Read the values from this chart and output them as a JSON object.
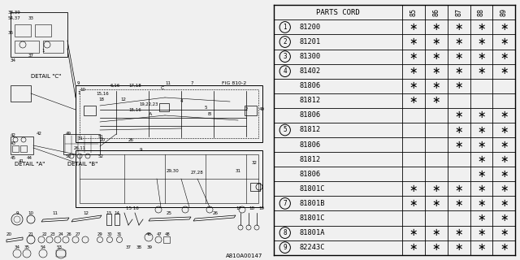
{
  "catalog_num": "A810A00147",
  "fig_ref": "FIG 810-2",
  "bg_color": "#f0f0f0",
  "table": {
    "rows": [
      {
        "num": "1",
        "part": "81200",
        "cols": [
          true,
          true,
          true,
          true,
          true
        ]
      },
      {
        "num": "2",
        "part": "81201",
        "cols": [
          true,
          true,
          true,
          true,
          true
        ]
      },
      {
        "num": "3",
        "part": "81300",
        "cols": [
          true,
          true,
          true,
          true,
          true
        ]
      },
      {
        "num": "4",
        "part": "81402",
        "cols": [
          true,
          true,
          true,
          true,
          true
        ]
      },
      {
        "num": "",
        "part": "81806",
        "cols": [
          true,
          true,
          true,
          false,
          false
        ]
      },
      {
        "num": "",
        "part": "81812",
        "cols": [
          true,
          true,
          false,
          false,
          false
        ]
      },
      {
        "num": "",
        "part": "81806",
        "cols": [
          false,
          false,
          true,
          true,
          true
        ]
      },
      {
        "num": "5",
        "part": "81812",
        "cols": [
          false,
          false,
          true,
          true,
          true
        ]
      },
      {
        "num": "",
        "part": "81806",
        "cols": [
          false,
          false,
          true,
          true,
          true
        ]
      },
      {
        "num": "",
        "part": "81812",
        "cols": [
          false,
          false,
          false,
          true,
          true
        ]
      },
      {
        "num": "",
        "part": "81806",
        "cols": [
          false,
          false,
          false,
          true,
          true
        ]
      },
      {
        "num": "",
        "part": "81801C",
        "cols": [
          true,
          true,
          true,
          true,
          true
        ]
      },
      {
        "num": "7",
        "part": "81801B",
        "cols": [
          true,
          true,
          true,
          true,
          true
        ]
      },
      {
        "num": "",
        "part": "81801C",
        "cols": [
          false,
          false,
          false,
          true,
          true
        ]
      },
      {
        "num": "8",
        "part": "81801A",
        "cols": [
          true,
          true,
          true,
          true,
          true
        ]
      },
      {
        "num": "9",
        "part": "82243C",
        "cols": [
          true,
          true,
          true,
          true,
          true
        ]
      }
    ]
  }
}
